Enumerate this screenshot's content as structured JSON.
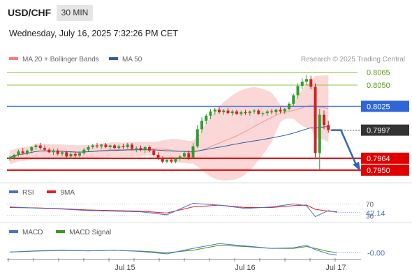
{
  "header": {
    "symbol": "USD/CHF",
    "timeframe": "30 MIN",
    "datetime": "Wednesday, July 16, 2025 7:32:26 PM CET",
    "credit": "Research © 2025 Trading Central"
  },
  "legend": {
    "bollinger": {
      "label": "MA 20 + Bollinger Bands",
      "color": "#f47c7c"
    },
    "ma50": {
      "label": "MA 50",
      "color": "#2e5f9e"
    }
  },
  "rsi_legend": {
    "rsi": {
      "label": "RSI",
      "color": "#4a6fd1"
    },
    "ma": {
      "label": "9MA",
      "color": "#e02020"
    }
  },
  "macd_legend": {
    "macd": {
      "label": "MACD",
      "color": "#4a6fd1"
    },
    "signal": {
      "label": "MACD Signal",
      "color": "#3c9a1c"
    }
  },
  "colors": {
    "resistance_line": "#8cc63f",
    "pivot_line": "#4a7be0",
    "support_line": "#e00000",
    "current_price_bg": "#333333",
    "up_candle": "#2e9e2e",
    "down_candle": "#d42020",
    "band_fill": "#f9caca"
  },
  "chart_data": [
    {
      "type": "candlestick",
      "symbol": "USD/CHF",
      "timeframe": "30 MIN",
      "x_labels": [
        "Jul 15",
        "Jul 16",
        "Jul 17"
      ],
      "ylim": [
        0.7945,
        0.8068
      ],
      "levels": [
        {
          "value": 0.8065,
          "label": "0.8065",
          "kind": "resistance"
        },
        {
          "value": 0.805,
          "label": "0.8050",
          "kind": "resistance"
        },
        {
          "value": 0.8025,
          "label": "0.8025",
          "kind": "pivot"
        },
        {
          "value": 0.7964,
          "label": "0.7964",
          "kind": "support"
        },
        {
          "value": 0.795,
          "label": "0.7950",
          "kind": "support"
        }
      ],
      "current_price": {
        "value": 0.7997,
        "label": "0.7997"
      },
      "forecast_arrow": {
        "from": 0.7997,
        "to": 0.795,
        "direction": "down"
      },
      "candles": [
        [
          0.7963,
          0.7967,
          0.7961,
          0.7965
        ],
        [
          0.7965,
          0.7969,
          0.7962,
          0.7968
        ],
        [
          0.7968,
          0.7974,
          0.7966,
          0.7972
        ],
        [
          0.7972,
          0.7976,
          0.7969,
          0.797
        ],
        [
          0.797,
          0.7974,
          0.7968,
          0.7973
        ],
        [
          0.7973,
          0.7978,
          0.7971,
          0.7977
        ],
        [
          0.7977,
          0.7981,
          0.7974,
          0.7979
        ],
        [
          0.7979,
          0.7982,
          0.7974,
          0.7976
        ],
        [
          0.7976,
          0.7979,
          0.7972,
          0.7974
        ],
        [
          0.7974,
          0.7976,
          0.797,
          0.7971
        ],
        [
          0.7971,
          0.7975,
          0.7968,
          0.7973
        ],
        [
          0.7973,
          0.7975,
          0.7967,
          0.7969
        ],
        [
          0.7969,
          0.7973,
          0.7966,
          0.7971
        ],
        [
          0.7971,
          0.7973,
          0.7964,
          0.7966
        ],
        [
          0.7966,
          0.7971,
          0.7963,
          0.7969
        ],
        [
          0.7969,
          0.7972,
          0.7965,
          0.7967
        ],
        [
          0.7967,
          0.7972,
          0.7965,
          0.797
        ],
        [
          0.797,
          0.7976,
          0.7968,
          0.7974
        ],
        [
          0.7974,
          0.7979,
          0.7972,
          0.7977
        ],
        [
          0.7977,
          0.7981,
          0.7975,
          0.7979
        ],
        [
          0.7979,
          0.7982,
          0.7976,
          0.7978
        ],
        [
          0.7978,
          0.7981,
          0.7975,
          0.798
        ],
        [
          0.798,
          0.7982,
          0.7976,
          0.7977
        ],
        [
          0.7977,
          0.798,
          0.7974,
          0.7979
        ],
        [
          0.7979,
          0.7981,
          0.7975,
          0.7976
        ],
        [
          0.7976,
          0.798,
          0.7974,
          0.7978
        ],
        [
          0.7978,
          0.7981,
          0.7975,
          0.7977
        ],
        [
          0.7977,
          0.7982,
          0.7975,
          0.798
        ],
        [
          0.798,
          0.7982,
          0.7973,
          0.7975
        ],
        [
          0.7975,
          0.7978,
          0.7971,
          0.7976
        ],
        [
          0.7976,
          0.7979,
          0.7972,
          0.7974
        ],
        [
          0.7974,
          0.7978,
          0.797,
          0.7977
        ],
        [
          0.7977,
          0.7979,
          0.7971,
          0.7973
        ],
        [
          0.7973,
          0.7975,
          0.7966,
          0.7968
        ],
        [
          0.7968,
          0.7971,
          0.7962,
          0.7964
        ],
        [
          0.7964,
          0.7966,
          0.7958,
          0.796
        ],
        [
          0.796,
          0.7964,
          0.7958,
          0.7962
        ],
        [
          0.7962,
          0.7965,
          0.7958,
          0.796
        ],
        [
          0.796,
          0.7965,
          0.7958,
          0.7963
        ],
        [
          0.7963,
          0.7968,
          0.7961,
          0.7966
        ],
        [
          0.7966,
          0.7972,
          0.7963,
          0.797
        ],
        [
          0.797,
          0.7973,
          0.7962,
          0.7965
        ],
        [
          0.7965,
          0.7982,
          0.7964,
          0.7978
        ],
        [
          0.7978,
          0.8003,
          0.7976,
          0.7998
        ],
        [
          0.7998,
          0.8012,
          0.7994,
          0.8008
        ],
        [
          0.8008,
          0.8016,
          0.8004,
          0.8014
        ],
        [
          0.8014,
          0.8022,
          0.801,
          0.8019
        ],
        [
          0.8019,
          0.8023,
          0.8015,
          0.8021
        ],
        [
          0.8021,
          0.8024,
          0.8016,
          0.8018
        ],
        [
          0.8018,
          0.8022,
          0.8015,
          0.802
        ],
        [
          0.802,
          0.8023,
          0.8016,
          0.8017
        ],
        [
          0.8017,
          0.8021,
          0.8014,
          0.8019
        ],
        [
          0.8019,
          0.8021,
          0.8015,
          0.8016
        ],
        [
          0.8016,
          0.802,
          0.8014,
          0.8018
        ],
        [
          0.8018,
          0.8021,
          0.8015,
          0.8017
        ],
        [
          0.8017,
          0.802,
          0.8014,
          0.8019
        ],
        [
          0.8019,
          0.8022,
          0.8016,
          0.802
        ],
        [
          0.802,
          0.8022,
          0.8015,
          0.8016
        ],
        [
          0.8016,
          0.8019,
          0.8013,
          0.8017
        ],
        [
          0.8017,
          0.8021,
          0.8014,
          0.8019
        ],
        [
          0.8019,
          0.8022,
          0.8016,
          0.8018
        ],
        [
          0.8018,
          0.8022,
          0.8015,
          0.8021
        ],
        [
          0.8021,
          0.8024,
          0.8017,
          0.8019
        ],
        [
          0.8019,
          0.8023,
          0.8016,
          0.8022
        ],
        [
          0.8022,
          0.803,
          0.802,
          0.8028
        ],
        [
          0.8028,
          0.804,
          0.8025,
          0.8038
        ],
        [
          0.8038,
          0.8052,
          0.8034,
          0.8049
        ],
        [
          0.8049,
          0.8058,
          0.8045,
          0.8054
        ],
        [
          0.8054,
          0.8062,
          0.805,
          0.8057
        ],
        [
          0.8057,
          0.8061,
          0.8045,
          0.8048
        ],
        [
          0.8048,
          0.8052,
          0.7965,
          0.797
        ],
        [
          0.797,
          0.8022,
          0.795,
          0.8015
        ],
        [
          0.8015,
          0.802,
          0.7998,
          0.8003
        ],
        [
          0.8003,
          0.8008,
          0.7994,
          0.7997
        ]
      ]
    },
    {
      "type": "line",
      "title": "RSI",
      "series": [
        {
          "name": "RSI"
        },
        {
          "name": "9MA"
        }
      ],
      "levels": [
        {
          "value": 70,
          "label": "70"
        },
        {
          "value": 30,
          "label": "30"
        }
      ],
      "current_value": "42.14",
      "x": [
        0,
        6,
        12,
        18,
        24,
        30,
        36,
        42,
        48,
        54,
        60,
        65,
        68,
        70,
        73,
        75
      ],
      "series_values": {
        "RSI": [
          60,
          56,
          53,
          48,
          46,
          44,
          34,
          72,
          66,
          55,
          60,
          70,
          64,
          28,
          48,
          42
        ],
        "9MA": [
          58,
          57,
          54,
          50,
          48,
          46,
          40,
          60,
          66,
          58,
          58,
          64,
          66,
          52,
          46,
          44
        ]
      },
      "ylim": [
        20,
        80
      ]
    },
    {
      "type": "line",
      "title": "MACD",
      "series": [
        {
          "name": "MACD"
        },
        {
          "name": "MACD Signal"
        }
      ],
      "current_value": "-0.00",
      "x": [
        0,
        6,
        12,
        18,
        24,
        30,
        36,
        42,
        48,
        54,
        60,
        65,
        68,
        70,
        73,
        75
      ],
      "series_values": {
        "MACD": [
          0.0,
          0.2,
          0.3,
          0.2,
          0.3,
          0.1,
          -0.3,
          0.6,
          1.4,
          1.0,
          0.6,
          0.7,
          1.1,
          0.4,
          -0.3,
          -0.5
        ],
        "MACD Signal": [
          0.0,
          0.15,
          0.25,
          0.2,
          0.28,
          0.15,
          -0.1,
          0.3,
          1.1,
          0.9,
          0.6,
          0.6,
          0.9,
          0.6,
          0.1,
          -0.1
        ]
      },
      "ylim": [
        -1,
        2
      ]
    }
  ]
}
